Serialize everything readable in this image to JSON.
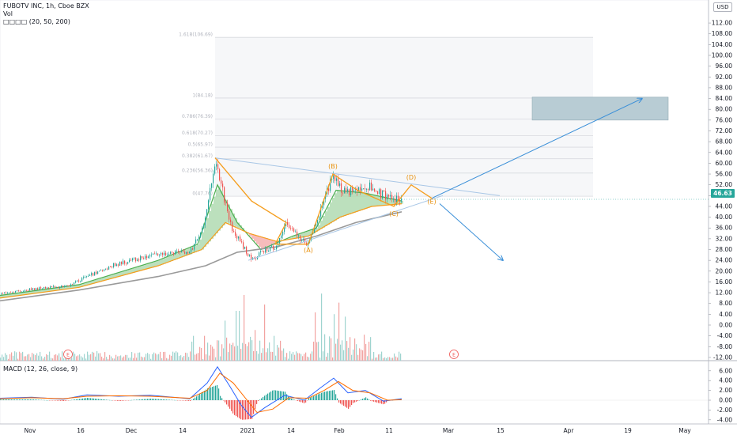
{
  "header": {
    "title_line": "FUBOTV INC, 1h, Cboe BZX",
    "vol_label": "Vol",
    "ma_label": "□□□□ (20, 50, 200)",
    "macd_label": "MACD (12, 26, close, 9)",
    "currency": "USD"
  },
  "last_price": "46.63",
  "colors": {
    "up": "#26a69a",
    "down": "#ef5350",
    "wave_orange": "#f59d1c",
    "projection_blue": "#3a8fd8",
    "target_box": "#b8ccd4",
    "fib_grid": "#d8dadf",
    "ma_long": "#9a9a9a"
  },
  "chart_data": [
    {
      "type": "line",
      "name": "price",
      "x_ticks": [
        "Nov",
        "16",
        "Dec",
        "14",
        "2021",
        "14",
        "Feb",
        "11",
        "Mar",
        "15",
        "Apr",
        "19",
        "May"
      ],
      "y_ticks": [
        112,
        108,
        104,
        100,
        96,
        92,
        88,
        84,
        80,
        76,
        72,
        68,
        64,
        60,
        56,
        52,
        48,
        44,
        40,
        36,
        32,
        28,
        24,
        20,
        16,
        12,
        8,
        4,
        0,
        -4,
        -8,
        -12
      ],
      "ylim": [
        -13,
        115
      ],
      "price_path": [
        {
          "x": 0,
          "y": 11.6
        },
        {
          "x": 40,
          "y": 13.3
        },
        {
          "x": 85,
          "y": 14.5
        },
        {
          "x": 110,
          "y": 18
        },
        {
          "x": 140,
          "y": 22
        },
        {
          "x": 180,
          "y": 25
        },
        {
          "x": 215,
          "y": 27
        },
        {
          "x": 240,
          "y": 27
        },
        {
          "x": 258,
          "y": 38
        },
        {
          "x": 272,
          "y": 62
        },
        {
          "x": 282,
          "y": 48
        },
        {
          "x": 292,
          "y": 36
        },
        {
          "x": 305,
          "y": 30
        },
        {
          "x": 318,
          "y": 24
        },
        {
          "x": 335,
          "y": 28
        },
        {
          "x": 350,
          "y": 29
        },
        {
          "x": 360,
          "y": 38
        },
        {
          "x": 372,
          "y": 34
        },
        {
          "x": 388,
          "y": 30
        },
        {
          "x": 402,
          "y": 40
        },
        {
          "x": 421,
          "y": 56
        },
        {
          "x": 432,
          "y": 49
        },
        {
          "x": 447,
          "y": 50
        },
        {
          "x": 462,
          "y": 52
        },
        {
          "x": 478,
          "y": 49
        },
        {
          "x": 495,
          "y": 47
        },
        {
          "x": 508,
          "y": 46.6
        }
      ],
      "moving_averages": [
        {
          "name": "20",
          "color": "#4caf50",
          "points": [
            {
              "x": 0,
              "y": 11
            },
            {
              "x": 100,
              "y": 15
            },
            {
              "x": 200,
              "y": 24
            },
            {
              "x": 250,
              "y": 30
            },
            {
              "x": 275,
              "y": 52
            },
            {
              "x": 300,
              "y": 38
            },
            {
              "x": 330,
              "y": 28
            },
            {
              "x": 370,
              "y": 33
            },
            {
              "x": 400,
              "y": 36
            },
            {
              "x": 425,
              "y": 50
            },
            {
              "x": 460,
              "y": 49
            },
            {
              "x": 508,
              "y": 46
            }
          ]
        },
        {
          "name": "50",
          "color": "#f59d1c",
          "points": [
            {
              "x": 0,
              "y": 10
            },
            {
              "x": 100,
              "y": 14
            },
            {
              "x": 200,
              "y": 22
            },
            {
              "x": 255,
              "y": 28
            },
            {
              "x": 285,
              "y": 38
            },
            {
              "x": 315,
              "y": 34
            },
            {
              "x": 350,
              "y": 31
            },
            {
              "x": 390,
              "y": 33
            },
            {
              "x": 430,
              "y": 40
            },
            {
              "x": 470,
              "y": 44
            },
            {
              "x": 508,
              "y": 45
            }
          ]
        },
        {
          "name": "200",
          "color": "#9a9a9a",
          "points": [
            {
              "x": 0,
              "y": 9
            },
            {
              "x": 100,
              "y": 13
            },
            {
              "x": 200,
              "y": 18
            },
            {
              "x": 260,
              "y": 22
            },
            {
              "x": 300,
              "y": 27
            },
            {
              "x": 350,
              "y": 29
            },
            {
              "x": 400,
              "y": 33
            },
            {
              "x": 450,
              "y": 38
            },
            {
              "x": 508,
              "y": 42
            }
          ]
        }
      ],
      "wave_labels": [
        {
          "label": "(A)",
          "x": 390,
          "y": 27
        },
        {
          "label": "(B)",
          "x": 421,
          "y": 58
        },
        {
          "label": "(C)",
          "x": 498,
          "y": 40.5
        },
        {
          "label": "(D)",
          "x": 520,
          "y": 54
        },
        {
          "label": "(E)",
          "x": 546,
          "y": 45
        }
      ],
      "wave_path": [
        {
          "x": 272,
          "y": 62
        },
        {
          "x": 318,
          "y": 46
        },
        {
          "x": 362,
          "y": 38
        },
        {
          "x": 348,
          "y": 30
        },
        {
          "x": 390,
          "y": 30
        },
        {
          "x": 421,
          "y": 56
        },
        {
          "x": 452,
          "y": 50
        },
        {
          "x": 498,
          "y": 44
        },
        {
          "x": 520,
          "y": 52
        },
        {
          "x": 546,
          "y": 47
        }
      ],
      "projection_up": {
        "from": {
          "x": 546,
          "y": 47
        },
        "to": {
          "x": 812,
          "y": 84
        }
      },
      "projection_down": {
        "from": {
          "x": 556,
          "y": 45
        },
        "to": {
          "x": 636,
          "y": 24
        }
      },
      "triangle_lines": [
        {
          "from": {
            "x": 272,
            "y": 62
          },
          "to": {
            "x": 632,
            "y": 48
          }
        },
        {
          "from": {
            "x": 314,
            "y": 24
          },
          "to": {
            "x": 560,
            "y": 48
          }
        }
      ],
      "target_box": {
        "x0": 673,
        "x1": 845,
        "y0": 76,
        "y1": 84.5
      },
      "fib_levels": [
        {
          "label": "1.618(106.69)",
          "value": 106.69
        },
        {
          "label": "1(84.18)",
          "value": 84.18
        },
        {
          "label": "0.786(76.39)",
          "value": 76.39
        },
        {
          "label": "0.618(70.27)",
          "value": 70.27
        },
        {
          "label": "0.5(65.97)",
          "value": 65.97
        },
        {
          "label": "0.382(61.67)",
          "value": 61.67
        },
        {
          "label": "0.236(56.36)",
          "value": 56.36
        },
        {
          "label": "0(47.76)",
          "value": 47.76
        }
      ],
      "fib_x_range": [
        272,
        750
      ],
      "event_markers": [
        {
          "label": "E",
          "x": 86
        },
        {
          "label": "E",
          "x": 574
        }
      ]
    },
    {
      "type": "line",
      "name": "MACD (12, 26, close, 9)",
      "y_ticks": [
        6.0,
        4.0,
        2.0,
        0.0,
        -2.0,
        -4.0
      ],
      "ylim": [
        -6,
        7.5
      ],
      "macd_line": [
        {
          "x": 0,
          "y": 0.4
        },
        {
          "x": 40,
          "y": 0.6
        },
        {
          "x": 80,
          "y": 0.2
        },
        {
          "x": 110,
          "y": 1.1
        },
        {
          "x": 150,
          "y": 0.8
        },
        {
          "x": 190,
          "y": 1.0
        },
        {
          "x": 240,
          "y": 0.3
        },
        {
          "x": 262,
          "y": 3.5
        },
        {
          "x": 275,
          "y": 6.8
        },
        {
          "x": 290,
          "y": 3.0
        },
        {
          "x": 305,
          "y": -1.0
        },
        {
          "x": 318,
          "y": -3.5
        },
        {
          "x": 335,
          "y": -1.5
        },
        {
          "x": 360,
          "y": 1.0
        },
        {
          "x": 385,
          "y": 0.0
        },
        {
          "x": 405,
          "y": 2.5
        },
        {
          "x": 422,
          "y": 4.5
        },
        {
          "x": 440,
          "y": 1.5
        },
        {
          "x": 462,
          "y": 2.0
        },
        {
          "x": 485,
          "y": -0.2
        },
        {
          "x": 508,
          "y": 0.3
        }
      ],
      "signal_line": [
        {
          "x": 0,
          "y": 0.3
        },
        {
          "x": 40,
          "y": 0.5
        },
        {
          "x": 80,
          "y": 0.3
        },
        {
          "x": 110,
          "y": 0.8
        },
        {
          "x": 150,
          "y": 0.9
        },
        {
          "x": 190,
          "y": 0.8
        },
        {
          "x": 240,
          "y": 0.4
        },
        {
          "x": 262,
          "y": 2.0
        },
        {
          "x": 278,
          "y": 5.5
        },
        {
          "x": 295,
          "y": 3.5
        },
        {
          "x": 310,
          "y": 0.5
        },
        {
          "x": 325,
          "y": -2.5
        },
        {
          "x": 345,
          "y": -1.8
        },
        {
          "x": 365,
          "y": 0.5
        },
        {
          "x": 390,
          "y": 0.4
        },
        {
          "x": 410,
          "y": 2.0
        },
        {
          "x": 428,
          "y": 3.8
        },
        {
          "x": 446,
          "y": 2.0
        },
        {
          "x": 468,
          "y": 1.5
        },
        {
          "x": 490,
          "y": 0.0
        },
        {
          "x": 508,
          "y": 0.1
        }
      ]
    }
  ]
}
